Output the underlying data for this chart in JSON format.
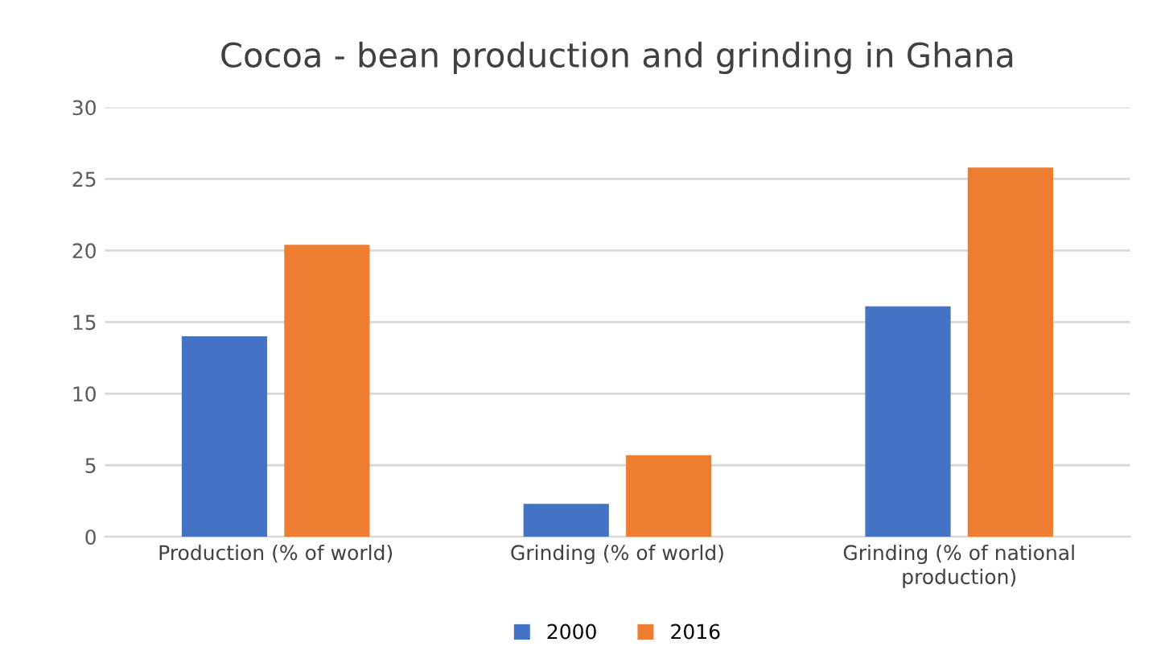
{
  "chart_data": {
    "type": "bar",
    "title": "Cocoa - bean production and grinding in Ghana",
    "categories": [
      "Production (% of world)",
      "Grinding (% of world)",
      "Grinding (% of national production)"
    ],
    "series": [
      {
        "name": "2000",
        "color": "#4472c4",
        "values": [
          14.0,
          2.3,
          16.1
        ]
      },
      {
        "name": "2016",
        "color": "#ed7d31",
        "values": [
          20.4,
          5.7,
          25.8
        ]
      }
    ],
    "ylim": [
      0,
      30
    ],
    "yticks": [
      0,
      5,
      10,
      15,
      20,
      25,
      30
    ],
    "grid": "y",
    "legend": "bottom"
  }
}
